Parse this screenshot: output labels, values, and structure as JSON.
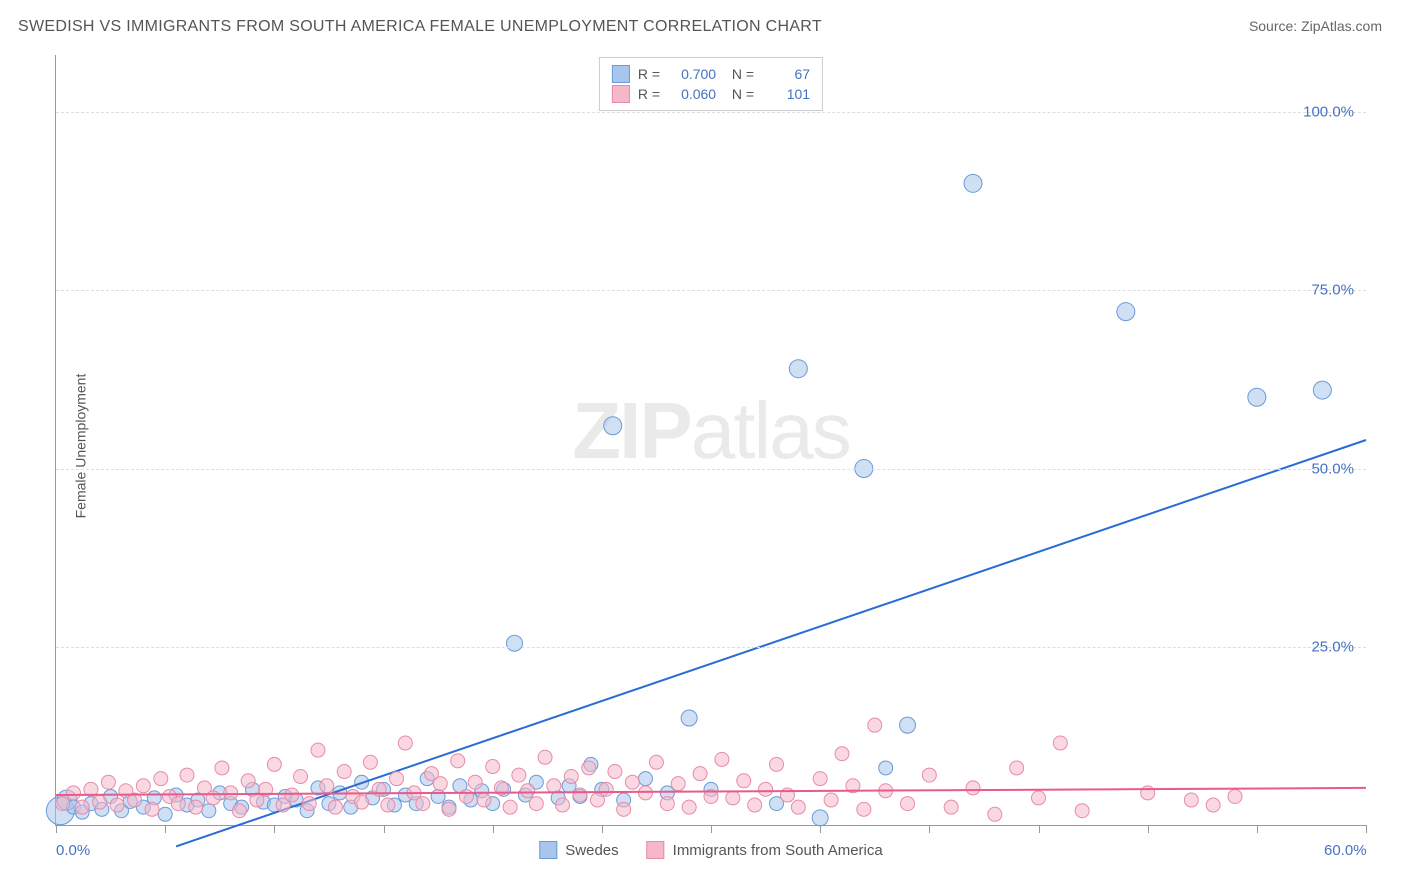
{
  "title": "SWEDISH VS IMMIGRANTS FROM SOUTH AMERICA FEMALE UNEMPLOYMENT CORRELATION CHART",
  "source": "Source: ZipAtlas.com",
  "ylabel": "Female Unemployment",
  "watermark_zip": "ZIP",
  "watermark_atlas": "atlas",
  "chart": {
    "type": "scatter",
    "xlim": [
      0,
      60
    ],
    "ylim": [
      0,
      108
    ],
    "x_ticks": [
      0,
      5,
      10,
      15,
      20,
      25,
      30,
      35,
      40,
      45,
      50,
      55,
      60
    ],
    "x_tick_labels": {
      "0": "0.0%",
      "60": "60.0%"
    },
    "y_ticks": [
      25,
      50,
      75,
      100
    ],
    "y_tick_labels": [
      "25.0%",
      "50.0%",
      "75.0%",
      "100.0%"
    ],
    "grid_color": "#dddddd",
    "background_color": "#ffffff",
    "axis_label_color": "#4472c4",
    "text_color": "#555555",
    "series": [
      {
        "name": "Swedes",
        "fill": "#a8c5eb",
        "stroke": "#6a9bd8",
        "fill_opacity": 0.55,
        "marker_r": 7,
        "R": "0.700",
        "N": "67",
        "trend": {
          "color": "#2b6cd4",
          "width": 2,
          "x1": 5.5,
          "y1": -3,
          "x2": 60,
          "y2": 54
        },
        "points": [
          {
            "x": 0.2,
            "y": 2,
            "r": 14
          },
          {
            "x": 0.5,
            "y": 3.5,
            "r": 10
          },
          {
            "x": 0.8,
            "y": 2.5
          },
          {
            "x": 1.2,
            "y": 1.8
          },
          {
            "x": 1.6,
            "y": 3
          },
          {
            "x": 2.1,
            "y": 2.2
          },
          {
            "x": 2.5,
            "y": 4
          },
          {
            "x": 3,
            "y": 2
          },
          {
            "x": 3.4,
            "y": 3.3
          },
          {
            "x": 4,
            "y": 2.5
          },
          {
            "x": 4.5,
            "y": 3.8
          },
          {
            "x": 5,
            "y": 1.5
          },
          {
            "x": 5.5,
            "y": 4.2
          },
          {
            "x": 6,
            "y": 2.8
          },
          {
            "x": 6.5,
            "y": 3.5
          },
          {
            "x": 7,
            "y": 2
          },
          {
            "x": 7.5,
            "y": 4.5
          },
          {
            "x": 8,
            "y": 3
          },
          {
            "x": 8.5,
            "y": 2.5
          },
          {
            "x": 9,
            "y": 5
          },
          {
            "x": 9.5,
            "y": 3.2
          },
          {
            "x": 10,
            "y": 2.8
          },
          {
            "x": 10.5,
            "y": 4
          },
          {
            "x": 11,
            "y": 3.5
          },
          {
            "x": 11.5,
            "y": 2
          },
          {
            "x": 12,
            "y": 5.2
          },
          {
            "x": 12.5,
            "y": 3
          },
          {
            "x": 13,
            "y": 4.5
          },
          {
            "x": 13.5,
            "y": 2.5
          },
          {
            "x": 14,
            "y": 6
          },
          {
            "x": 14.5,
            "y": 3.8
          },
          {
            "x": 15,
            "y": 5
          },
          {
            "x": 15.5,
            "y": 2.8
          },
          {
            "x": 16,
            "y": 4.2
          },
          {
            "x": 16.5,
            "y": 3
          },
          {
            "x": 17,
            "y": 6.5
          },
          {
            "x": 17.5,
            "y": 4
          },
          {
            "x": 18,
            "y": 2.5
          },
          {
            "x": 18.5,
            "y": 5.5
          },
          {
            "x": 19,
            "y": 3.5
          },
          {
            "x": 19.5,
            "y": 4.8
          },
          {
            "x": 20,
            "y": 3
          },
          {
            "x": 20.5,
            "y": 5
          },
          {
            "x": 21,
            "y": 25.5,
            "r": 8
          },
          {
            "x": 21.5,
            "y": 4.2
          },
          {
            "x": 22,
            "y": 6
          },
          {
            "x": 23,
            "y": 3.8
          },
          {
            "x": 23.5,
            "y": 5.5
          },
          {
            "x": 24,
            "y": 4
          },
          {
            "x": 24.5,
            "y": 8.5
          },
          {
            "x": 25,
            "y": 5
          },
          {
            "x": 25.5,
            "y": 56,
            "r": 9
          },
          {
            "x": 26,
            "y": 3.5
          },
          {
            "x": 27,
            "y": 6.5
          },
          {
            "x": 28,
            "y": 4.5
          },
          {
            "x": 29,
            "y": 15,
            "r": 8
          },
          {
            "x": 30,
            "y": 5
          },
          {
            "x": 33,
            "y": 3
          },
          {
            "x": 34,
            "y": 64,
            "r": 9
          },
          {
            "x": 35,
            "y": 1,
            "r": 8
          },
          {
            "x": 37,
            "y": 50,
            "r": 9
          },
          {
            "x": 38,
            "y": 8
          },
          {
            "x": 39,
            "y": 14,
            "r": 8
          },
          {
            "x": 42,
            "y": 90,
            "r": 9
          },
          {
            "x": 49,
            "y": 72,
            "r": 9
          },
          {
            "x": 55,
            "y": 60,
            "r": 9
          },
          {
            "x": 58,
            "y": 61,
            "r": 9
          }
        ]
      },
      {
        "name": "Immigrants from South America",
        "fill": "#f5b8c9",
        "stroke": "#e88ba8",
        "fill_opacity": 0.55,
        "marker_r": 7,
        "R": "0.060",
        "N": "101",
        "trend": {
          "color": "#e85a8a",
          "width": 2,
          "x1": 0,
          "y1": 4.2,
          "x2": 60,
          "y2": 5.2
        },
        "points": [
          {
            "x": 0.3,
            "y": 3
          },
          {
            "x": 0.8,
            "y": 4.5
          },
          {
            "x": 1.2,
            "y": 2.5
          },
          {
            "x": 1.6,
            "y": 5
          },
          {
            "x": 2,
            "y": 3.2
          },
          {
            "x": 2.4,
            "y": 6
          },
          {
            "x": 2.8,
            "y": 2.8
          },
          {
            "x": 3.2,
            "y": 4.8
          },
          {
            "x": 3.6,
            "y": 3.5
          },
          {
            "x": 4,
            "y": 5.5
          },
          {
            "x": 4.4,
            "y": 2.2
          },
          {
            "x": 4.8,
            "y": 6.5
          },
          {
            "x": 5.2,
            "y": 4
          },
          {
            "x": 5.6,
            "y": 3
          },
          {
            "x": 6,
            "y": 7
          },
          {
            "x": 6.4,
            "y": 2.5
          },
          {
            "x": 6.8,
            "y": 5.2
          },
          {
            "x": 7.2,
            "y": 3.8
          },
          {
            "x": 7.6,
            "y": 8
          },
          {
            "x": 8,
            "y": 4.5
          },
          {
            "x": 8.4,
            "y": 2
          },
          {
            "x": 8.8,
            "y": 6.2
          },
          {
            "x": 9.2,
            "y": 3.5
          },
          {
            "x": 9.6,
            "y": 5
          },
          {
            "x": 10,
            "y": 8.5
          },
          {
            "x": 10.4,
            "y": 2.8
          },
          {
            "x": 10.8,
            "y": 4.2
          },
          {
            "x": 11.2,
            "y": 6.8
          },
          {
            "x": 11.6,
            "y": 3
          },
          {
            "x": 12,
            "y": 10.5
          },
          {
            "x": 12.4,
            "y": 5.5
          },
          {
            "x": 12.8,
            "y": 2.5
          },
          {
            "x": 13.2,
            "y": 7.5
          },
          {
            "x": 13.6,
            "y": 4
          },
          {
            "x": 14,
            "y": 3.2
          },
          {
            "x": 14.4,
            "y": 8.8
          },
          {
            "x": 14.8,
            "y": 5
          },
          {
            "x": 15.2,
            "y": 2.8
          },
          {
            "x": 15.6,
            "y": 6.5
          },
          {
            "x": 16,
            "y": 11.5
          },
          {
            "x": 16.4,
            "y": 4.5
          },
          {
            "x": 16.8,
            "y": 3
          },
          {
            "x": 17.2,
            "y": 7.2
          },
          {
            "x": 17.6,
            "y": 5.8
          },
          {
            "x": 18,
            "y": 2.2
          },
          {
            "x": 18.4,
            "y": 9
          },
          {
            "x": 18.8,
            "y": 4
          },
          {
            "x": 19.2,
            "y": 6
          },
          {
            "x": 19.6,
            "y": 3.5
          },
          {
            "x": 20,
            "y": 8.2
          },
          {
            "x": 20.4,
            "y": 5.2
          },
          {
            "x": 20.8,
            "y": 2.5
          },
          {
            "x": 21.2,
            "y": 7
          },
          {
            "x": 21.6,
            "y": 4.8
          },
          {
            "x": 22,
            "y": 3
          },
          {
            "x": 22.4,
            "y": 9.5
          },
          {
            "x": 22.8,
            "y": 5.5
          },
          {
            "x": 23.2,
            "y": 2.8
          },
          {
            "x": 23.6,
            "y": 6.8
          },
          {
            "x": 24,
            "y": 4.2
          },
          {
            "x": 24.4,
            "y": 8
          },
          {
            "x": 24.8,
            "y": 3.5
          },
          {
            "x": 25.2,
            "y": 5
          },
          {
            "x": 25.6,
            "y": 7.5
          },
          {
            "x": 26,
            "y": 2.2
          },
          {
            "x": 26.4,
            "y": 6
          },
          {
            "x": 27,
            "y": 4.5
          },
          {
            "x": 27.5,
            "y": 8.8
          },
          {
            "x": 28,
            "y": 3
          },
          {
            "x": 28.5,
            "y": 5.8
          },
          {
            "x": 29,
            "y": 2.5
          },
          {
            "x": 29.5,
            "y": 7.2
          },
          {
            "x": 30,
            "y": 4
          },
          {
            "x": 30.5,
            "y": 9.2
          },
          {
            "x": 31,
            "y": 3.8
          },
          {
            "x": 31.5,
            "y": 6.2
          },
          {
            "x": 32,
            "y": 2.8
          },
          {
            "x": 32.5,
            "y": 5
          },
          {
            "x": 33,
            "y": 8.5
          },
          {
            "x": 33.5,
            "y": 4.2
          },
          {
            "x": 34,
            "y": 2.5
          },
          {
            "x": 35,
            "y": 6.5
          },
          {
            "x": 35.5,
            "y": 3.5
          },
          {
            "x": 36,
            "y": 10
          },
          {
            "x": 36.5,
            "y": 5.5
          },
          {
            "x": 37,
            "y": 2.2
          },
          {
            "x": 37.5,
            "y": 14
          },
          {
            "x": 38,
            "y": 4.8
          },
          {
            "x": 39,
            "y": 3
          },
          {
            "x": 40,
            "y": 7
          },
          {
            "x": 41,
            "y": 2.5
          },
          {
            "x": 42,
            "y": 5.2
          },
          {
            "x": 43,
            "y": 1.5
          },
          {
            "x": 44,
            "y": 8
          },
          {
            "x": 45,
            "y": 3.8
          },
          {
            "x": 46,
            "y": 11.5
          },
          {
            "x": 47,
            "y": 2
          },
          {
            "x": 50,
            "y": 4.5
          },
          {
            "x": 52,
            "y": 3.5
          },
          {
            "x": 53,
            "y": 2.8
          },
          {
            "x": 54,
            "y": 4
          }
        ]
      }
    ]
  },
  "legend_bottom": [
    {
      "label": "Swedes",
      "fill": "#a8c5eb",
      "stroke": "#6a9bd8"
    },
    {
      "label": "Immigrants from South America",
      "fill": "#f5b8c9",
      "stroke": "#e88ba8"
    }
  ]
}
